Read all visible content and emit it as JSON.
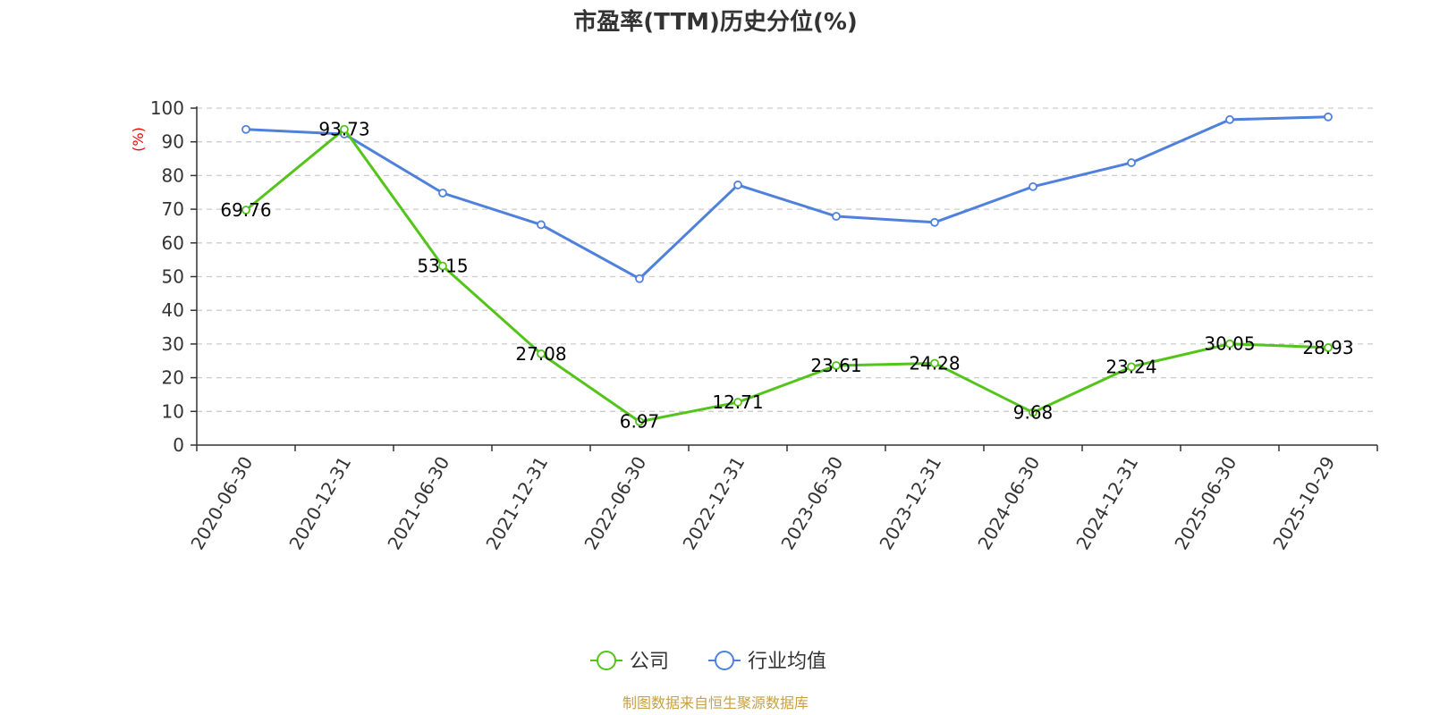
{
  "chart_data": {
    "type": "line",
    "title": "市盈率(TTM)历史分位(%)",
    "ylabel": "(%)",
    "ylim": [
      0,
      100
    ],
    "yticks": [
      0,
      10,
      20,
      30,
      40,
      50,
      60,
      70,
      80,
      90,
      100
    ],
    "grid": true,
    "legend_position": "bottom-center",
    "categories": [
      "2020-06-30",
      "2020-12-31",
      "2021-06-30",
      "2021-12-31",
      "2022-06-30",
      "2022-12-31",
      "2023-06-30",
      "2023-12-31",
      "2024-06-30",
      "2024-12-31",
      "2025-06-30",
      "2025-10-29"
    ],
    "series": [
      {
        "name": "公司",
        "color": "#52c41a",
        "show_labels": true,
        "values": [
          69.76,
          93.73,
          53.15,
          27.08,
          6.97,
          12.71,
          23.61,
          24.28,
          9.68,
          23.24,
          30.05,
          28.93
        ],
        "labels": [
          "69.76",
          "93.73",
          "53.15",
          "27.08",
          "6.97",
          "12.71",
          "23.61",
          "24.28",
          "9.68",
          "23.24",
          "30.05",
          "28.93"
        ]
      },
      {
        "name": "行业均值",
        "color": "#4f81dc",
        "show_labels": false,
        "values": [
          93.7,
          92.3,
          74.8,
          65.4,
          49.4,
          77.2,
          67.9,
          66.1,
          76.7,
          83.8,
          96.6,
          97.4
        ]
      }
    ],
    "source": "制图数据来自恒生聚源数据库"
  }
}
